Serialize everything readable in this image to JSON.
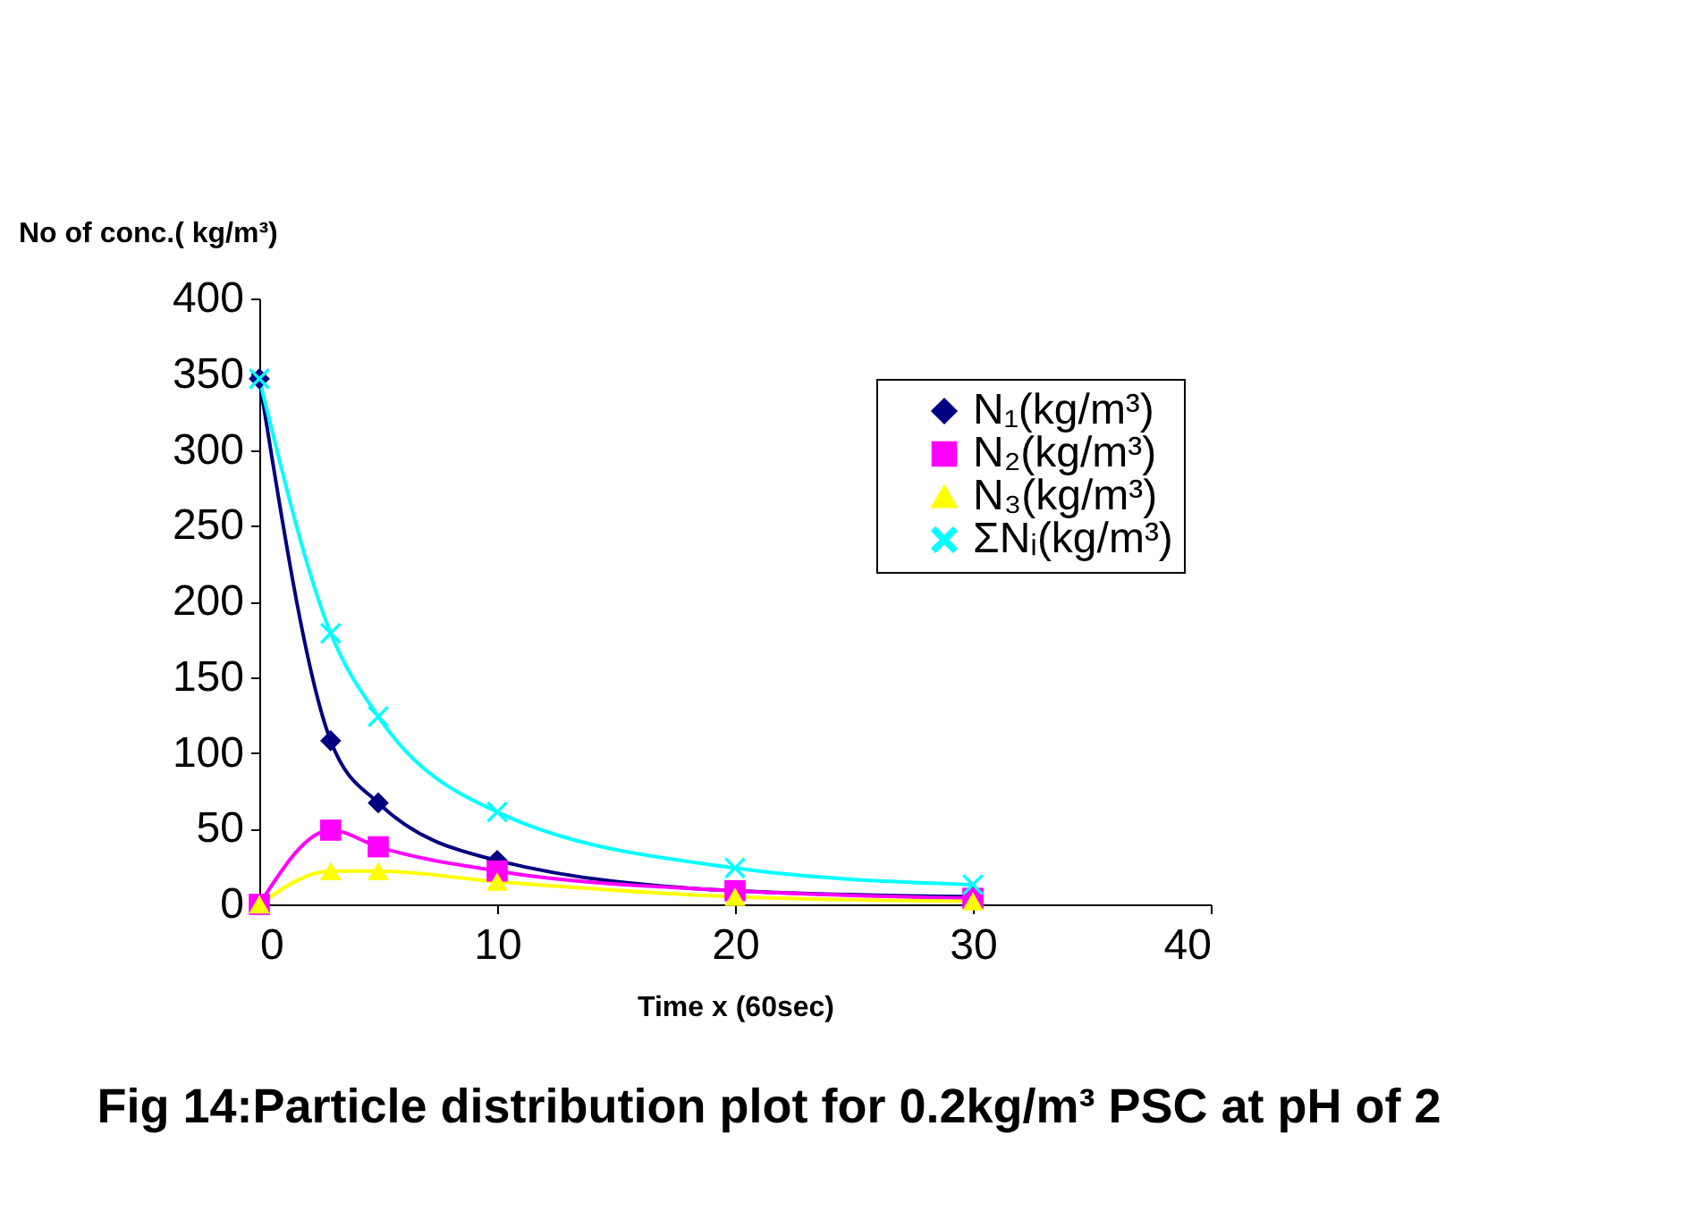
{
  "chart_data": {
    "type": "line",
    "title": "Fig 14:Particle distribution plot for 0.2kg/m³ PSC at pH of 2",
    "xlabel": "Time x (60sec)",
    "ylabel": "No of conc.( kg/m³)",
    "x": [
      0,
      3,
      5,
      10,
      20,
      30
    ],
    "series": [
      {
        "name": "N₁(kg/m³)",
        "color": "#000080",
        "marker": "diamond",
        "values": [
          347,
          108,
          67,
          29,
          9,
          5
        ]
      },
      {
        "name": "N₂(kg/m³)",
        "color": "#ff00ff",
        "marker": "square",
        "values": [
          0,
          49,
          38,
          22,
          9,
          4
        ]
      },
      {
        "name": "N₃(kg/m³)",
        "color": "#ffff00",
        "marker": "triangle",
        "values": [
          0,
          22,
          22,
          15,
          5,
          2
        ]
      },
      {
        "name": "ΣNᵢ(kg/m³)",
        "color": "#00ffff",
        "marker": "cross",
        "values": [
          347,
          179,
          124,
          61,
          24,
          13
        ]
      }
    ],
    "xlim": [
      0,
      40
    ],
    "xticks": [
      0,
      10,
      20,
      30,
      40
    ],
    "ylim": [
      0,
      400
    ],
    "yticks": [
      0,
      50,
      100,
      150,
      200,
      250,
      300,
      350,
      400
    ],
    "grid": false,
    "legend": "top right",
    "line_style": "solid"
  }
}
